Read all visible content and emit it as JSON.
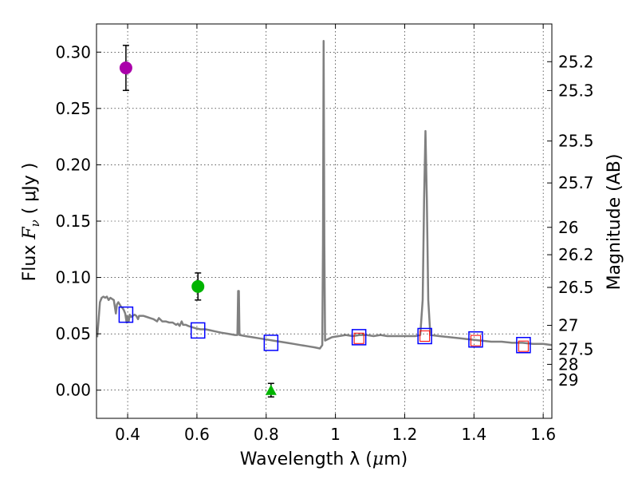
{
  "chart_data": {
    "type": "scatter",
    "xlabel": "Wavelength  λ (μm)",
    "ylabel": "Flux  F_ν  ( μJy )",
    "ylabel_parts": {
      "prefix": "Flux  ",
      "symbol": "F",
      "subscript": "ν",
      "suffix": "  ( μJy )"
    },
    "xlabel_parts": {
      "prefix": "Wavelength  λ (",
      "mu": "μ",
      "suffix": "m)"
    },
    "y2label": "Magnitude (AB)",
    "xlim": [
      0.31,
      1.625
    ],
    "ylim": [
      -0.025,
      0.325
    ],
    "grid": true,
    "x_ticks": [
      0.4,
      0.6,
      0.8,
      1.0,
      1.2,
      1.4,
      1.6
    ],
    "x_tick_labels": [
      "0.4",
      "0.6",
      "0.8",
      "1",
      "1.2",
      "1.4",
      "1.6"
    ],
    "y_ticks": [
      0.0,
      0.05,
      0.1,
      0.15,
      0.2,
      0.25,
      0.3
    ],
    "y_tick_labels": [
      "0.00",
      "0.05",
      "0.10",
      "0.15",
      "0.20",
      "0.25",
      "0.30"
    ],
    "mag_ticks": [
      {
        "label": "25.2",
        "flux": 0.2915
      },
      {
        "label": "25.3",
        "flux": 0.2659
      },
      {
        "label": "25.5",
        "flux": 0.2211
      },
      {
        "label": "25.7",
        "flux": 0.1839
      },
      {
        "label": "26",
        "flux": 0.1445
      },
      {
        "label": "26.2",
        "flux": 0.1202
      },
      {
        "label": "26.5",
        "flux": 0.0912
      },
      {
        "label": "27",
        "flux": 0.0575
      },
      {
        "label": "27.5",
        "flux": 0.0363
      },
      {
        "label": "28",
        "flux": 0.0229
      },
      {
        "label": "29",
        "flux": 0.0091
      }
    ],
    "measurements": [
      {
        "x": 0.395,
        "y": 0.286,
        "yerr": 0.02,
        "marker": "circle",
        "color": "#aa00aa"
      },
      {
        "x": 0.603,
        "y": 0.092,
        "yerr": 0.012,
        "marker": "circle",
        "color": "#00b400"
      },
      {
        "x": 0.814,
        "y": 0.0,
        "yerr": 0.006,
        "marker": "triangle",
        "color": "#00b400"
      }
    ],
    "model_photometry": [
      {
        "x": 0.395,
        "y": 0.067
      },
      {
        "x": 0.603,
        "y": 0.053
      },
      {
        "x": 0.814,
        "y": 0.042
      },
      {
        "x": 1.068,
        "y": 0.047
      },
      {
        "x": 1.258,
        "y": 0.048
      },
      {
        "x": 1.405,
        "y": 0.045
      },
      {
        "x": 1.543,
        "y": 0.04
      }
    ],
    "observed_nir": [
      {
        "x": 1.068,
        "y": 0.046
      },
      {
        "x": 1.258,
        "y": 0.048
      },
      {
        "x": 1.405,
        "y": 0.044
      },
      {
        "x": 1.543,
        "y": 0.039
      }
    ],
    "sed_model": [
      [
        0.312,
        0.047
      ],
      [
        0.316,
        0.062
      ],
      [
        0.32,
        0.078
      ],
      [
        0.325,
        0.082
      ],
      [
        0.33,
        0.083
      ],
      [
        0.335,
        0.082
      ],
      [
        0.34,
        0.083
      ],
      [
        0.345,
        0.08
      ],
      [
        0.35,
        0.082
      ],
      [
        0.355,
        0.081
      ],
      [
        0.36,
        0.08
      ],
      [
        0.363,
        0.074
      ],
      [
        0.366,
        0.068
      ],
      [
        0.369,
        0.076
      ],
      [
        0.373,
        0.078
      ],
      [
        0.377,
        0.076
      ],
      [
        0.381,
        0.074
      ],
      [
        0.385,
        0.073
      ],
      [
        0.389,
        0.071
      ],
      [
        0.393,
        0.068
      ],
      [
        0.397,
        0.06
      ],
      [
        0.399,
        0.066
      ],
      [
        0.403,
        0.061
      ],
      [
        0.406,
        0.067
      ],
      [
        0.41,
        0.065
      ],
      [
        0.415,
        0.066
      ],
      [
        0.42,
        0.067
      ],
      [
        0.425,
        0.066
      ],
      [
        0.43,
        0.063
      ],
      [
        0.433,
        0.066
      ],
      [
        0.438,
        0.066
      ],
      [
        0.445,
        0.066
      ],
      [
        0.455,
        0.065
      ],
      [
        0.465,
        0.064
      ],
      [
        0.475,
        0.063
      ],
      [
        0.485,
        0.061
      ],
      [
        0.49,
        0.064
      ],
      [
        0.5,
        0.061
      ],
      [
        0.51,
        0.061
      ],
      [
        0.52,
        0.06
      ],
      [
        0.53,
        0.06
      ],
      [
        0.54,
        0.058
      ],
      [
        0.545,
        0.059
      ],
      [
        0.55,
        0.057
      ],
      [
        0.556,
        0.061
      ],
      [
        0.56,
        0.058
      ],
      [
        0.568,
        0.058
      ],
      [
        0.575,
        0.057
      ],
      [
        0.585,
        0.056
      ],
      [
        0.595,
        0.055
      ],
      [
        0.61,
        0.054
      ],
      [
        0.625,
        0.054
      ],
      [
        0.64,
        0.053
      ],
      [
        0.655,
        0.052
      ],
      [
        0.67,
        0.051
      ],
      [
        0.69,
        0.05
      ],
      [
        0.71,
        0.049
      ],
      [
        0.717,
        0.049
      ],
      [
        0.719,
        0.088
      ],
      [
        0.721,
        0.088
      ],
      [
        0.723,
        0.049
      ],
      [
        0.74,
        0.048
      ],
      [
        0.76,
        0.047
      ],
      [
        0.78,
        0.046
      ],
      [
        0.8,
        0.045
      ],
      [
        0.82,
        0.044
      ],
      [
        0.84,
        0.043
      ],
      [
        0.86,
        0.042
      ],
      [
        0.88,
        0.041
      ],
      [
        0.9,
        0.04
      ],
      [
        0.92,
        0.039
      ],
      [
        0.94,
        0.038
      ],
      [
        0.955,
        0.037
      ],
      [
        0.962,
        0.04
      ],
      [
        0.964,
        0.13
      ],
      [
        0.966,
        0.31
      ],
      [
        0.968,
        0.13
      ],
      [
        0.97,
        0.044
      ],
      [
        0.99,
        0.047
      ],
      [
        1.01,
        0.048
      ],
      [
        1.03,
        0.049
      ],
      [
        1.05,
        0.048
      ],
      [
        1.07,
        0.049
      ],
      [
        1.09,
        0.049
      ],
      [
        1.11,
        0.048
      ],
      [
        1.13,
        0.049
      ],
      [
        1.15,
        0.048
      ],
      [
        1.17,
        0.048
      ],
      [
        1.19,
        0.048
      ],
      [
        1.21,
        0.048
      ],
      [
        1.23,
        0.048
      ],
      [
        1.245,
        0.049
      ],
      [
        1.252,
        0.08
      ],
      [
        1.256,
        0.17
      ],
      [
        1.26,
        0.23
      ],
      [
        1.264,
        0.17
      ],
      [
        1.268,
        0.08
      ],
      [
        1.274,
        0.049
      ],
      [
        1.3,
        0.048
      ],
      [
        1.33,
        0.047
      ],
      [
        1.36,
        0.046
      ],
      [
        1.39,
        0.045
      ],
      [
        1.42,
        0.044
      ],
      [
        1.45,
        0.043
      ],
      [
        1.48,
        0.043
      ],
      [
        1.51,
        0.042
      ],
      [
        1.54,
        0.042
      ],
      [
        1.57,
        0.041
      ],
      [
        1.6,
        0.041
      ],
      [
        1.625,
        0.04
      ]
    ]
  }
}
